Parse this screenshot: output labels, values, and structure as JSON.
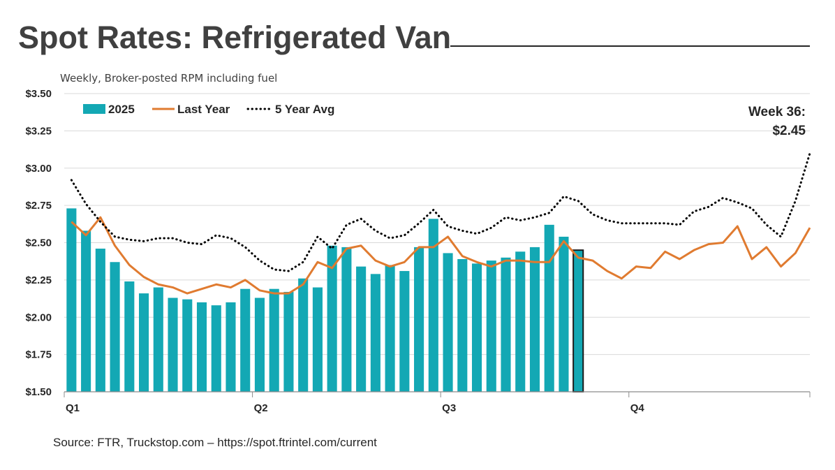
{
  "title": "Spot Rates: Refrigerated Van",
  "source": "Source: FTR, Truckstop.com – https://spot.ftrintel.com/current",
  "chart_data": {
    "type": "bar",
    "subtitle": "Weekly, Broker-posted RPM including fuel",
    "ylim": [
      1.5,
      3.5
    ],
    "y_ticks": [
      1.5,
      1.75,
      2.0,
      2.25,
      2.5,
      2.75,
      3.0,
      3.25,
      3.5
    ],
    "y_tick_labels": [
      "$1.50",
      "$1.75",
      "$2.00",
      "$2.25",
      "$2.50",
      "$2.75",
      "$3.00",
      "$3.25",
      "$3.50"
    ],
    "weeks": 52,
    "quarter_labels": [
      {
        "label": "Q1",
        "week": 1
      },
      {
        "label": "Q2",
        "week": 14
      },
      {
        "label": "Q3",
        "week": 27
      },
      {
        "label": "Q4",
        "week": 40
      }
    ],
    "grid": true,
    "legend_position": "top-left",
    "legend": [
      {
        "name": "2025",
        "type": "bar",
        "color": "#13A8B4"
      },
      {
        "name": "Last Year",
        "type": "line",
        "color": "#E07B30"
      },
      {
        "name": "5 Year Avg",
        "type": "dotted-line",
        "color": "#000000"
      }
    ],
    "annotation": {
      "line1": "Week 36:",
      "line2": "$2.45"
    },
    "series": [
      {
        "name": "2025",
        "type": "bar",
        "color": "#13A8B4",
        "highlight_last": true,
        "values": [
          2.73,
          2.58,
          2.46,
          2.37,
          2.24,
          2.16,
          2.2,
          2.13,
          2.12,
          2.1,
          2.08,
          2.1,
          2.19,
          2.13,
          2.19,
          2.17,
          2.26,
          2.2,
          2.48,
          2.47,
          2.34,
          2.29,
          2.35,
          2.31,
          2.47,
          2.66,
          2.43,
          2.39,
          2.36,
          2.38,
          2.4,
          2.44,
          2.47,
          2.62,
          2.54,
          2.45
        ]
      },
      {
        "name": "Last Year",
        "type": "line",
        "color": "#E07B30",
        "values": [
          2.64,
          2.55,
          2.67,
          2.48,
          2.35,
          2.27,
          2.22,
          2.2,
          2.16,
          2.19,
          2.22,
          2.2,
          2.25,
          2.18,
          2.16,
          2.16,
          2.22,
          2.37,
          2.33,
          2.46,
          2.48,
          2.38,
          2.34,
          2.37,
          2.47,
          2.47,
          2.54,
          2.41,
          2.37,
          2.34,
          2.38,
          2.38,
          2.37,
          2.37,
          2.51,
          2.4,
          2.38,
          2.31,
          2.26,
          2.34,
          2.33,
          2.44,
          2.39,
          2.45,
          2.49,
          2.5,
          2.61,
          2.39,
          2.47,
          2.34,
          2.43,
          2.6
        ]
      },
      {
        "name": "5 Year Avg",
        "type": "dotted-line",
        "color": "#000000",
        "values": [
          2.92,
          2.76,
          2.64,
          2.54,
          2.52,
          2.51,
          2.53,
          2.53,
          2.5,
          2.49,
          2.55,
          2.53,
          2.47,
          2.38,
          2.32,
          2.31,
          2.37,
          2.54,
          2.46,
          2.62,
          2.66,
          2.58,
          2.53,
          2.55,
          2.63,
          2.72,
          2.61,
          2.58,
          2.56,
          2.6,
          2.67,
          2.65,
          2.67,
          2.7,
          2.81,
          2.78,
          2.69,
          2.65,
          2.63,
          2.63,
          2.63,
          2.63,
          2.62,
          2.71,
          2.74,
          2.8,
          2.77,
          2.73,
          2.62,
          2.54,
          2.78,
          3.1
        ]
      }
    ]
  }
}
